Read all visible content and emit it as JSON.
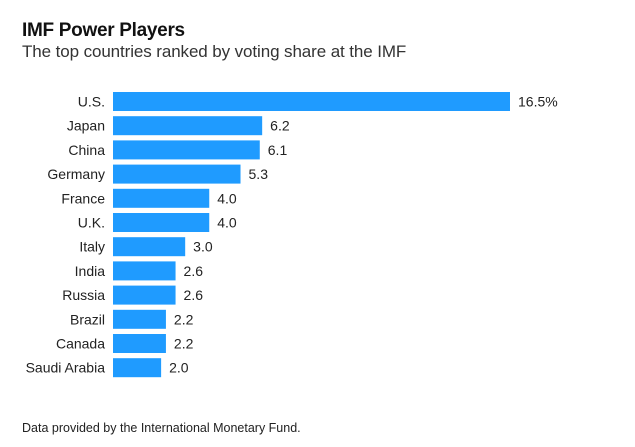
{
  "chart_data": {
    "type": "bar",
    "orientation": "horizontal",
    "title": "IMF Power Players",
    "subtitle": "The top countries ranked by voting share at the IMF",
    "categories": [
      "U.S.",
      "Japan",
      "China",
      "Germany",
      "France",
      "U.K.",
      "Italy",
      "India",
      "Russia",
      "Brazil",
      "Canada",
      "Saudi Arabia"
    ],
    "values": [
      16.5,
      6.2,
      6.1,
      5.3,
      4.0,
      4.0,
      3.0,
      2.6,
      2.6,
      2.2,
      2.2,
      2.0
    ],
    "value_labels": [
      "16.5%",
      "6.2",
      "6.1",
      "5.3",
      "4.0",
      "4.0",
      "3.0",
      "2.6",
      "2.6",
      "2.2",
      "2.2",
      "2.0"
    ],
    "xlabel": "",
    "ylabel": "",
    "xlim": [
      0,
      16.5
    ],
    "grid": false,
    "bar_color": "#1f9bff",
    "footnote": "Data provided by the International Monetary Fund."
  }
}
